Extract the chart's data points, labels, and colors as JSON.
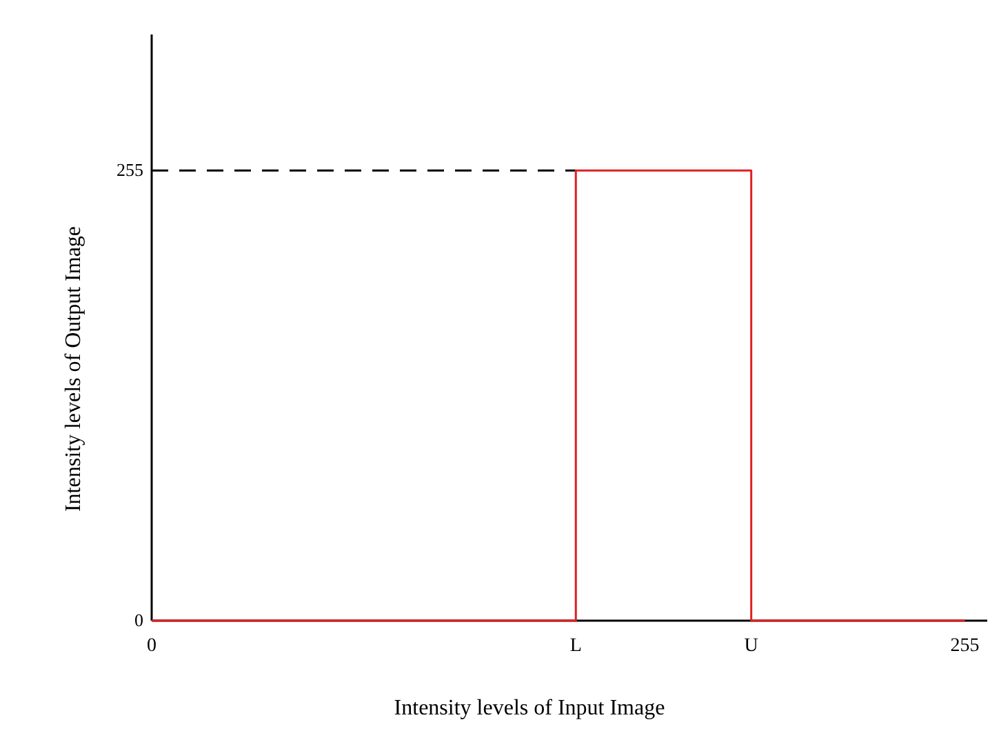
{
  "chart_data": {
    "type": "line",
    "xlabel": "Intensity levels of Input Image",
    "ylabel": "Intensity levels of Output Image",
    "xlim": [
      0,
      262
    ],
    "ylim": [
      0,
      332
    ],
    "xticks": [
      0,
      {
        "value": 133,
        "label": "L"
      },
      {
        "value": 188,
        "label": "U"
      },
      255
    ],
    "yticks": [
      0,
      255
    ],
    "series": [
      {
        "color": "#000000",
        "line_style": "dashed",
        "x": [
          0,
          133
        ],
        "values": [
          255,
          255
        ]
      },
      {
        "color": "#e02020",
        "line_style": "solid",
        "x": [
          0,
          133,
          133,
          188,
          188,
          255
        ],
        "values": [
          0,
          0,
          255,
          255,
          0,
          0
        ]
      }
    ]
  }
}
